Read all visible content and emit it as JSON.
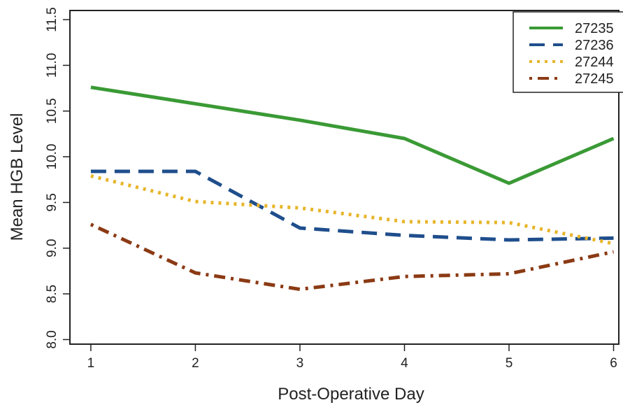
{
  "chart_data": {
    "type": "line",
    "title": "",
    "xlabel": "Post-Operative Day",
    "ylabel": "Mean HGB Level",
    "x": [
      1,
      2,
      3,
      4,
      5,
      6
    ],
    "x_ticks": [
      "1",
      "2",
      "3",
      "4",
      "5",
      "6"
    ],
    "y_ticks": [
      "8.0",
      "8.5",
      "9.0",
      "9.5",
      "10.0",
      "10.5",
      "11.0",
      "11.5"
    ],
    "xlim": [
      0.8,
      6.05
    ],
    "ylim": [
      7.95,
      11.6
    ],
    "grid": false,
    "legend_position": "top-right",
    "series": [
      {
        "name": "27235",
        "color": "#3a9a35",
        "dash": "solid",
        "values": [
          10.76,
          10.58,
          10.4,
          10.2,
          9.71,
          10.2
        ]
      },
      {
        "name": "27236",
        "color": "#1f4e8c",
        "dash": "dashed",
        "values": [
          9.84,
          9.84,
          9.22,
          9.14,
          9.09,
          9.11
        ]
      },
      {
        "name": "27244",
        "color": "#e8b52a",
        "dash": "dotted",
        "values": [
          9.79,
          9.51,
          9.44,
          9.29,
          9.28,
          9.05
        ]
      },
      {
        "name": "27245",
        "color": "#8b3a14",
        "dash": "dashdot",
        "values": [
          9.26,
          8.73,
          8.55,
          8.69,
          8.72,
          8.96
        ]
      }
    ]
  }
}
